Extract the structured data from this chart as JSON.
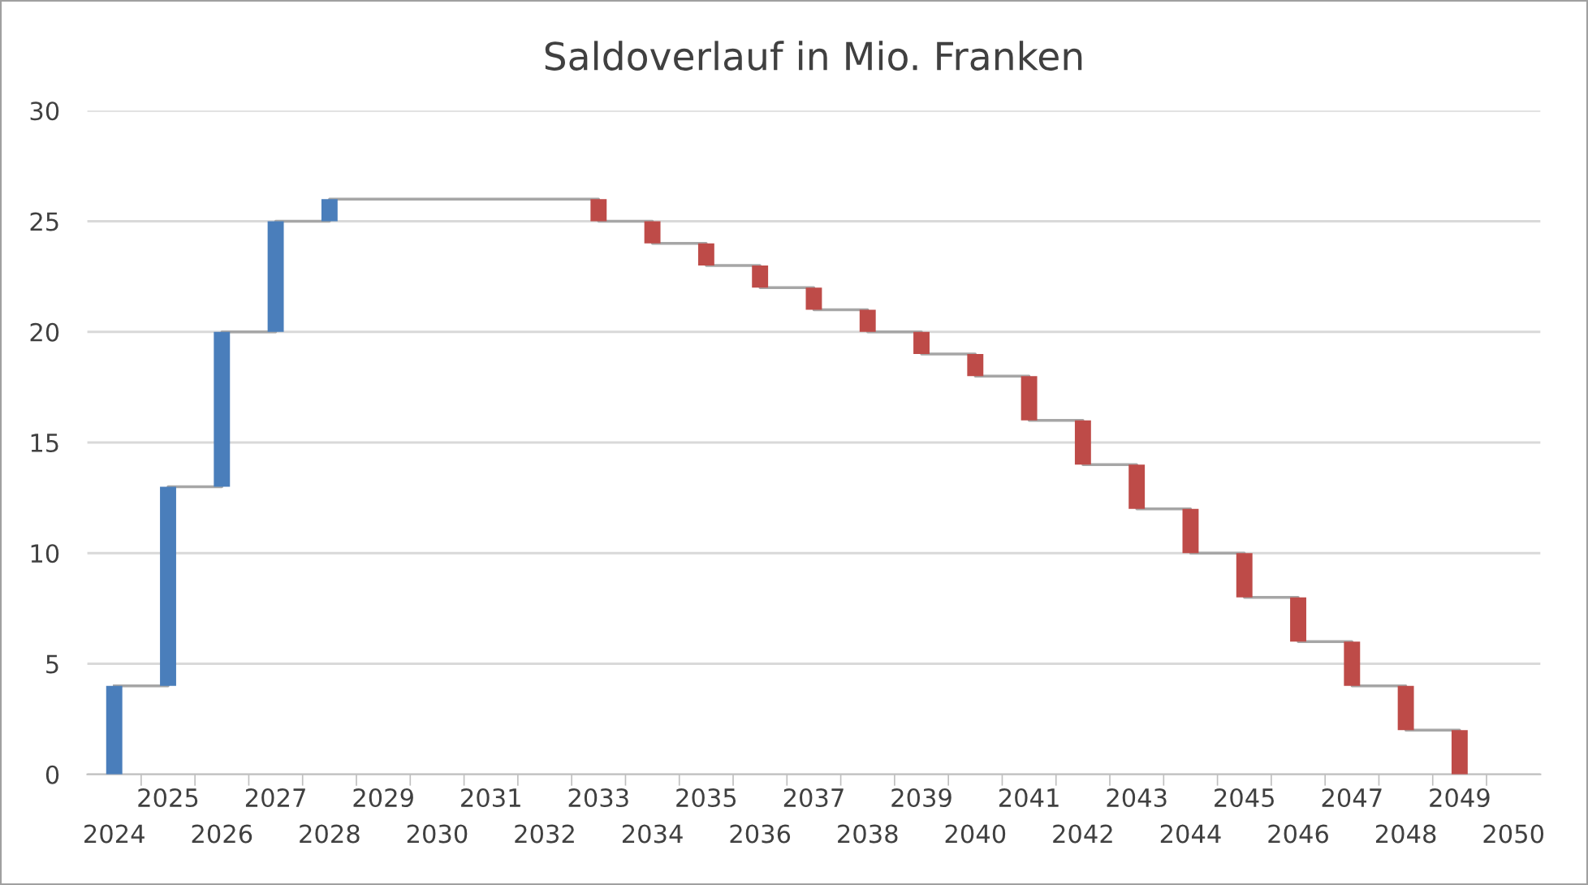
{
  "chart_data": {
    "type": "bar",
    "title": "Saldoverlauf in Mio. Franken",
    "categories": [
      "2024",
      "2025",
      "2026",
      "2027",
      "2028",
      "2029",
      "2030",
      "2031",
      "2032",
      "2033",
      "2034",
      "2035",
      "2036",
      "2037",
      "2038",
      "2039",
      "2040",
      "2041",
      "2042",
      "2043",
      "2044",
      "2045",
      "2046",
      "2047",
      "2048",
      "2049",
      "2050"
    ],
    "series": [
      {
        "values": [
          4,
          9,
          7,
          5,
          1,
          null,
          null,
          null,
          null,
          -1,
          -1,
          -1,
          -1,
          -1,
          -1,
          -1,
          -1,
          -2,
          -2,
          -2,
          -2,
          -2,
          -2,
          -2,
          -2,
          -2,
          null
        ],
        "base": [
          0,
          4,
          13,
          20,
          25,
          null,
          null,
          null,
          null,
          26,
          25,
          24,
          23,
          22,
          21,
          20,
          19,
          18,
          16,
          14,
          12,
          10,
          8,
          6,
          4,
          2,
          null
        ],
        "colors": [
          "#4a7ebb",
          "#4a7ebb",
          "#4a7ebb",
          "#4a7ebb",
          "#4a7ebb",
          "#4a7ebb",
          "#4a7ebb",
          "#4a7ebb",
          "#4a7ebb",
          "#be4b48",
          "#be4b48",
          "#be4b48",
          "#be4b48",
          "#be4b48",
          "#be4b48",
          "#be4b48",
          "#be4b48",
          "#be4b48",
          "#be4b48",
          "#be4b48",
          "#be4b48",
          "#be4b48",
          "#be4b48",
          "#be4b48",
          "#be4b48",
          "#be4b48",
          "#be4b48"
        ]
      },
      {
        "type": "step",
        "color": "#a6a6a6",
        "values": [
          4,
          13,
          20,
          25,
          26,
          26,
          26,
          26,
          26,
          25,
          24,
          23,
          22,
          21,
          20,
          19,
          18,
          16,
          14,
          12,
          10,
          8,
          6,
          4,
          2,
          0,
          null
        ]
      }
    ],
    "ylim": [
      0,
      30
    ],
    "yticks": [
      0,
      5,
      10,
      15,
      20,
      25,
      30
    ],
    "grid": "y"
  }
}
